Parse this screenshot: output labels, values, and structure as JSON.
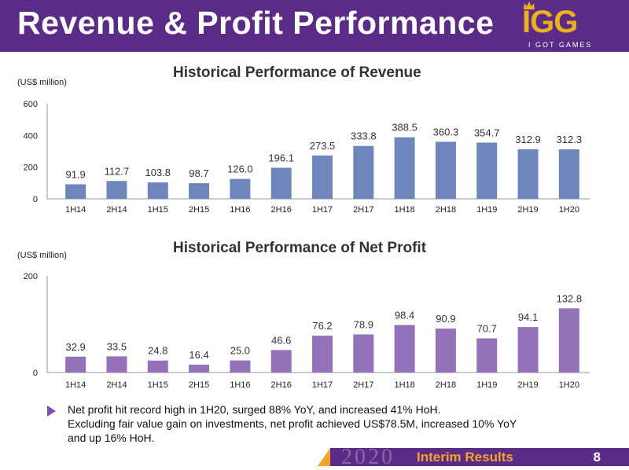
{
  "header": {
    "title": "Revenue & Profit Performance"
  },
  "logo": {
    "mark": "IGG",
    "subtitle": "I GOT GAMES",
    "icon": "crown-icon"
  },
  "colors": {
    "header_bg": "#5a2c87",
    "revenue_bar": "#6f86bd",
    "profit_bar": "#9372b9",
    "accent_orange": "#f4a523",
    "logo_gold": "#e9b21a"
  },
  "chart_data": [
    {
      "type": "bar",
      "title": "Historical Performance of Revenue",
      "unit_label": "(US$ million)",
      "categories": [
        "1H14",
        "2H14",
        "1H15",
        "2H15",
        "1H16",
        "2H16",
        "1H17",
        "2H17",
        "1H18",
        "2H18",
        "1H19",
        "2H19",
        "1H20"
      ],
      "values": [
        91.9,
        112.7,
        103.8,
        98.7,
        126.0,
        196.1,
        273.5,
        333.8,
        388.5,
        360.3,
        354.7,
        312.9,
        312.3
      ],
      "value_labels": [
        "91.9",
        "112.7",
        "103.8",
        "98.7",
        "126.0",
        "196.1",
        "273.5",
        "333.8",
        "388.5",
        "360.3",
        "354.7",
        "312.9",
        "312.3"
      ],
      "yticks": [
        "0",
        "200",
        "400",
        "600"
      ],
      "ylim": [
        0,
        600
      ],
      "color": "#6f86bd"
    },
    {
      "type": "bar",
      "title": "Historical Performance of Net Profit",
      "unit_label": "(US$ million)",
      "categories": [
        "1H14",
        "2H14",
        "1H15",
        "2H15",
        "1H16",
        "2H16",
        "1H17",
        "2H17",
        "1H18",
        "2H18",
        "1H19",
        "2H19",
        "1H20"
      ],
      "values": [
        32.9,
        33.5,
        24.8,
        16.4,
        25.0,
        46.6,
        76.2,
        78.9,
        98.4,
        90.9,
        70.7,
        94.1,
        132.8
      ],
      "value_labels": [
        "32.9",
        "33.5",
        "24.8",
        "16.4",
        "25.0",
        "46.6",
        "76.2",
        "78.9",
        "98.4",
        "90.9",
        "70.7",
        "94.1",
        "132.8"
      ],
      "yticks": [
        "0",
        "200"
      ],
      "ylim": [
        0,
        200
      ],
      "color": "#9372b9"
    }
  ],
  "bullets": [
    {
      "lines": [
        "Net profit hit record high in 1H20, surged 88% YoY, and increased 41% HoH.",
        "Excluding fair value gain on investments, net profit achieved US$78.5M, increased 10% YoY",
        "and up 16% HoH."
      ]
    }
  ],
  "footer": {
    "year": "2020",
    "label": "Interim Results",
    "page": "8"
  }
}
